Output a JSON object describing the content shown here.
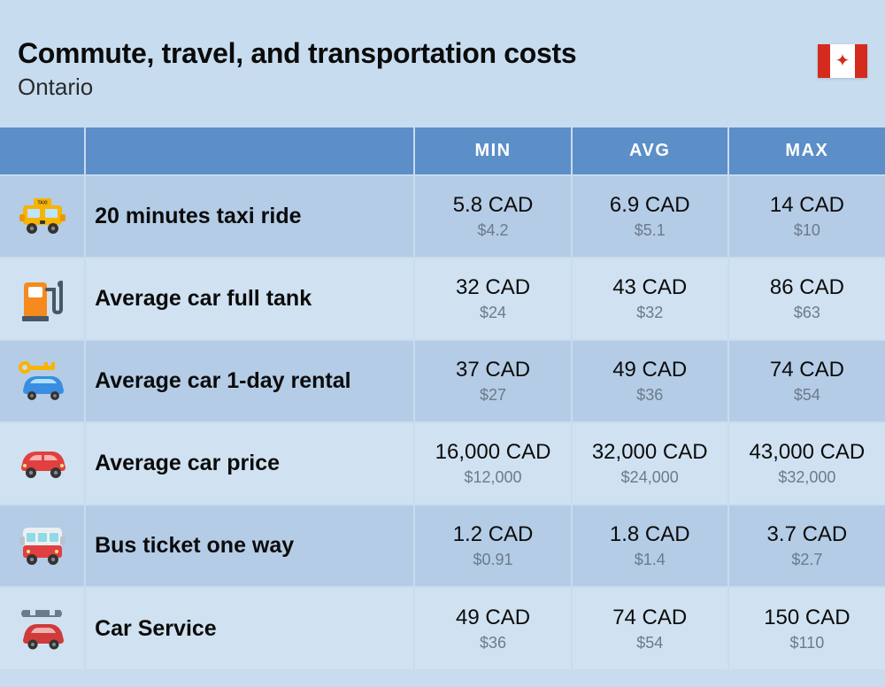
{
  "header": {
    "title": "Commute, travel, and transportation costs",
    "subtitle": "Ontario",
    "flag": "canada"
  },
  "table": {
    "columns": [
      "MIN",
      "AVG",
      "MAX"
    ],
    "rows": [
      {
        "icon": "taxi",
        "label": "20 minutes taxi ride",
        "min_cad": "5.8 CAD",
        "min_usd": "$4.2",
        "avg_cad": "6.9 CAD",
        "avg_usd": "$5.1",
        "max_cad": "14 CAD",
        "max_usd": "$10"
      },
      {
        "icon": "fuel",
        "label": "Average car full tank",
        "min_cad": "32 CAD",
        "min_usd": "$24",
        "avg_cad": "43 CAD",
        "avg_usd": "$32",
        "max_cad": "86 CAD",
        "max_usd": "$63"
      },
      {
        "icon": "rental",
        "label": "Average car 1-day rental",
        "min_cad": "37 CAD",
        "min_usd": "$27",
        "avg_cad": "49 CAD",
        "avg_usd": "$36",
        "max_cad": "74 CAD",
        "max_usd": "$54"
      },
      {
        "icon": "car",
        "label": "Average car price",
        "min_cad": "16,000 CAD",
        "min_usd": "$12,000",
        "avg_cad": "32,000 CAD",
        "avg_usd": "$24,000",
        "max_cad": "43,000 CAD",
        "max_usd": "$32,000"
      },
      {
        "icon": "bus",
        "label": "Bus ticket one way",
        "min_cad": "1.2 CAD",
        "min_usd": "$0.91",
        "avg_cad": "1.8 CAD",
        "avg_usd": "$1.4",
        "max_cad": "3.7 CAD",
        "max_usd": "$2.7"
      },
      {
        "icon": "service",
        "label": "Car Service",
        "min_cad": "49 CAD",
        "min_usd": "$36",
        "avg_cad": "74 CAD",
        "avg_usd": "$54",
        "max_cad": "150 CAD",
        "max_usd": "$110"
      }
    ]
  },
  "style": {
    "background_color": "#c7dcef",
    "header_bg": "#5c8ec7",
    "row_odd_bg": "#b4cce6",
    "row_even_bg": "#d0e2f1",
    "title_fontsize": 32,
    "label_fontsize": 25,
    "cad_fontsize": 24,
    "usd_fontsize": 18,
    "cad_color": "#0b0b0b",
    "usd_color": "#6b7b8c",
    "grid_color": "#c7dcef",
    "icon_colors": {
      "taxi": "#f7b400",
      "fuel": "#f68a1e",
      "rental_key": "#f7b400",
      "rental_car": "#3a8de0",
      "car": "#e04040",
      "bus": "#e04040",
      "service_wrench": "#6b7b8c",
      "service_car": "#d03a3a"
    }
  }
}
